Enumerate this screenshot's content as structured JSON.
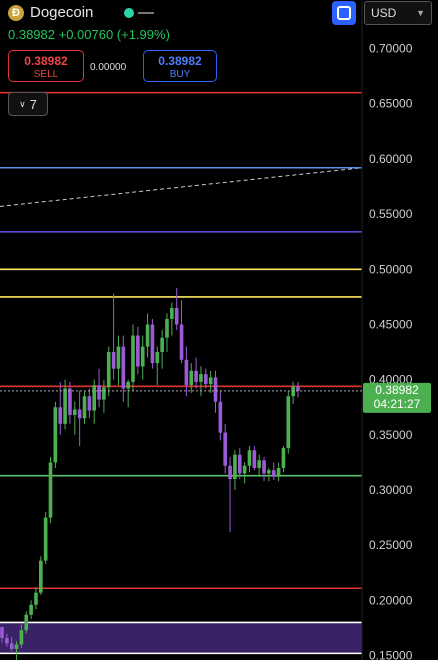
{
  "header": {
    "coin_icon": "dogecoin-icon",
    "symbol": "Dogecoin",
    "quote": "0.38982 +0.00760 (+1.99%)",
    "currency": "USD",
    "sell_price": "0.38982",
    "sell_label": "SELL",
    "spread": "0.00000",
    "buy_price": "0.38982",
    "buy_label": "BUY",
    "indicator_count": "7"
  },
  "price_tag": {
    "price": "0.38982",
    "countdown": "04:21:27"
  },
  "colors": {
    "up": "#4caf50",
    "down": "#9c5bd6",
    "accent": "#2962ff"
  },
  "chart_data": {
    "type": "candlestick",
    "y_ticks": [
      "0.70000",
      "0.65000",
      "0.60000",
      "0.55000",
      "0.50000",
      "0.45000",
      "0.40000",
      "0.35000",
      "0.30000",
      "0.25000",
      "0.20000",
      "0.15000"
    ],
    "y_tick_values": [
      0.7,
      0.65,
      0.6,
      0.55,
      0.5,
      0.45,
      0.4,
      0.35,
      0.3,
      0.25,
      0.2,
      0.15
    ],
    "ylim": [
      0.146,
      0.744
    ],
    "last_price": 0.38982,
    "horizontal_lines": [
      {
        "value": 0.66,
        "color": "#e0332e"
      },
      {
        "value": 0.592,
        "color": "#5b8ee6"
      },
      {
        "value": 0.534,
        "color": "#6a45d9"
      },
      {
        "value": 0.5,
        "color": "#ffe65c"
      },
      {
        "value": 0.475,
        "color": "#ffe65c"
      },
      {
        "value": 0.394,
        "color": "#e0332e"
      },
      {
        "value": 0.313,
        "color": "#5cc26b"
      },
      {
        "value": 0.211,
        "color": "#e0332e"
      },
      {
        "value": 0.18,
        "color": "#ffffff"
      },
      {
        "value": 0.152,
        "color": "#ffffff"
      }
    ],
    "zone": {
      "from": 0.152,
      "to": 0.18,
      "color": "#3a2266"
    },
    "trendline": {
      "from": 0.557,
      "to": 0.592,
      "color": "#ffffff",
      "dashed": true
    },
    "candles": [
      [
        0.176,
        0.176,
        0.162,
        0.166
      ],
      [
        0.166,
        0.17,
        0.158,
        0.161
      ],
      [
        0.161,
        0.167,
        0.154,
        0.156
      ],
      [
        0.156,
        0.163,
        0.146,
        0.16
      ],
      [
        0.16,
        0.178,
        0.157,
        0.173
      ],
      [
        0.173,
        0.19,
        0.17,
        0.187
      ],
      [
        0.187,
        0.2,
        0.183,
        0.196
      ],
      [
        0.196,
        0.212,
        0.192,
        0.207
      ],
      [
        0.207,
        0.24,
        0.205,
        0.236
      ],
      [
        0.236,
        0.28,
        0.233,
        0.275
      ],
      [
        0.275,
        0.33,
        0.27,
        0.325
      ],
      [
        0.325,
        0.38,
        0.32,
        0.375
      ],
      [
        0.375,
        0.398,
        0.35,
        0.36
      ],
      [
        0.36,
        0.4,
        0.355,
        0.392
      ],
      [
        0.392,
        0.398,
        0.36,
        0.368
      ],
      [
        0.368,
        0.38,
        0.35,
        0.373
      ],
      [
        0.373,
        0.39,
        0.34,
        0.365
      ],
      [
        0.365,
        0.39,
        0.36,
        0.385
      ],
      [
        0.385,
        0.392,
        0.365,
        0.372
      ],
      [
        0.372,
        0.4,
        0.36,
        0.395
      ],
      [
        0.395,
        0.41,
        0.375,
        0.382
      ],
      [
        0.382,
        0.4,
        0.37,
        0.393
      ],
      [
        0.393,
        0.43,
        0.385,
        0.425
      ],
      [
        0.425,
        0.478,
        0.4,
        0.41
      ],
      [
        0.41,
        0.44,
        0.395,
        0.43
      ],
      [
        0.43,
        0.44,
        0.38,
        0.392
      ],
      [
        0.392,
        0.4,
        0.375,
        0.398
      ],
      [
        0.398,
        0.45,
        0.39,
        0.44
      ],
      [
        0.44,
        0.448,
        0.405,
        0.412
      ],
      [
        0.412,
        0.44,
        0.4,
        0.43
      ],
      [
        0.43,
        0.46,
        0.42,
        0.45
      ],
      [
        0.45,
        0.455,
        0.41,
        0.415
      ],
      [
        0.415,
        0.43,
        0.395,
        0.425
      ],
      [
        0.425,
        0.445,
        0.41,
        0.438
      ],
      [
        0.438,
        0.46,
        0.425,
        0.455
      ],
      [
        0.455,
        0.47,
        0.44,
        0.465
      ],
      [
        0.465,
        0.483,
        0.445,
        0.45
      ],
      [
        0.45,
        0.472,
        0.415,
        0.418
      ],
      [
        0.418,
        0.43,
        0.385,
        0.395
      ],
      [
        0.395,
        0.415,
        0.388,
        0.408
      ],
      [
        0.408,
        0.42,
        0.392,
        0.398
      ],
      [
        0.398,
        0.412,
        0.385,
        0.405
      ],
      [
        0.405,
        0.41,
        0.392,
        0.396
      ],
      [
        0.396,
        0.408,
        0.388,
        0.402
      ],
      [
        0.402,
        0.408,
        0.37,
        0.38
      ],
      [
        0.38,
        0.39,
        0.345,
        0.352
      ],
      [
        0.352,
        0.36,
        0.315,
        0.322
      ],
      [
        0.322,
        0.33,
        0.262,
        0.31
      ],
      [
        0.31,
        0.336,
        0.3,
        0.332
      ],
      [
        0.332,
        0.338,
        0.31,
        0.315
      ],
      [
        0.315,
        0.325,
        0.306,
        0.322
      ],
      [
        0.322,
        0.34,
        0.316,
        0.336
      ],
      [
        0.336,
        0.34,
        0.318,
        0.32
      ],
      [
        0.32,
        0.332,
        0.312,
        0.327
      ],
      [
        0.327,
        0.33,
        0.308,
        0.315
      ],
      [
        0.315,
        0.32,
        0.308,
        0.318
      ],
      [
        0.318,
        0.325,
        0.309,
        0.312
      ],
      [
        0.312,
        0.325,
        0.308,
        0.32
      ],
      [
        0.32,
        0.34,
        0.316,
        0.338
      ],
      [
        0.338,
        0.39,
        0.333,
        0.385
      ],
      [
        0.385,
        0.398,
        0.378,
        0.394
      ],
      [
        0.394,
        0.398,
        0.384,
        0.39
      ]
    ]
  }
}
